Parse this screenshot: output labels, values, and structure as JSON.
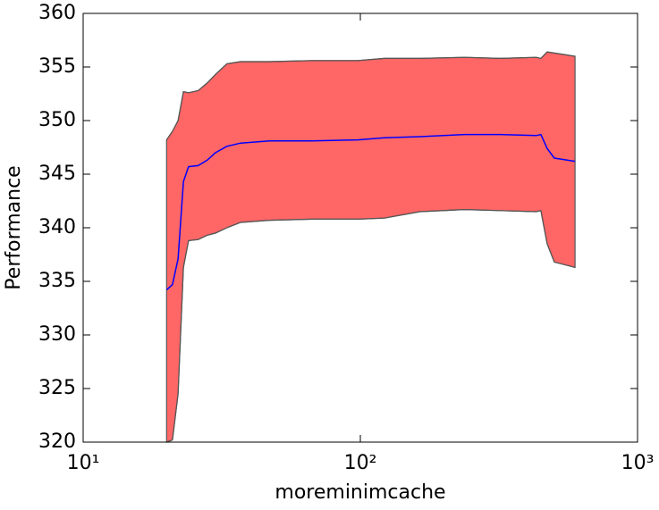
{
  "chart_data": {
    "type": "band-line",
    "x_label": "moreminimcache",
    "y_label": "Performance",
    "x": [
      20,
      21,
      22,
      23,
      24,
      26,
      28,
      30,
      33,
      37,
      47,
      67,
      98,
      122,
      164,
      238,
      320,
      431,
      448,
      472,
      501,
      595
    ],
    "line": {
      "color": "#0000ff",
      "values": [
        334.2,
        334.7,
        337.1,
        344.3,
        345.7,
        345.8,
        346.3,
        347,
        347.6,
        347.9,
        348.1,
        348.1,
        348.2,
        348.4,
        348.5,
        348.7,
        348.7,
        348.6,
        348.7,
        347.4,
        346.5,
        346.2
      ]
    },
    "band": {
      "color": "#ff6666",
      "edge": "#555555",
      "upper": [
        348.2,
        349,
        350,
        352.7,
        352.6,
        352.8,
        353.5,
        354.3,
        355.3,
        355.5,
        355.5,
        355.6,
        355.6,
        355.8,
        355.8,
        355.9,
        355.8,
        355.9,
        355.8,
        356.4,
        356.3,
        356
      ],
      "lower": [
        320,
        320.2,
        324.5,
        336.3,
        338.8,
        338.9,
        339.3,
        339.5,
        340,
        340.5,
        340.7,
        340.8,
        340.8,
        340.9,
        341.5,
        341.7,
        341.6,
        341.5,
        341.6,
        338.5,
        336.8,
        336.3
      ]
    },
    "xscale": "log",
    "xlim": [
      10,
      1000
    ],
    "xticks": [
      {
        "value": 10,
        "label": "10¹"
      },
      {
        "value": 100,
        "label": "10²"
      },
      {
        "value": 1000,
        "label": "10³"
      }
    ],
    "ylim": [
      320,
      360
    ],
    "yticks": [
      320,
      325,
      330,
      335,
      340,
      345,
      350,
      355,
      360
    ],
    "grid": false
  }
}
